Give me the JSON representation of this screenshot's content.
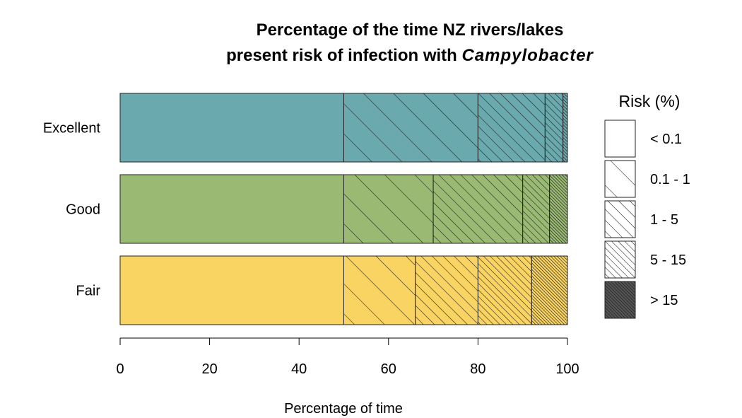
{
  "chart_data": {
    "type": "bar",
    "orientation": "horizontal",
    "stacked": true,
    "title_line1": "Percentage of the time NZ rivers/lakes",
    "title_line2_prefix": "present risk of infection with ",
    "title_line2_italic": "Campylobacter",
    "xlabel": "Percentage of time",
    "ylabel": "",
    "xlim": [
      0,
      100
    ],
    "xticks": [
      0,
      20,
      40,
      60,
      80,
      100
    ],
    "grid": false,
    "categories": [
      "Excellent",
      "Good",
      "Fair"
    ],
    "category_colors": [
      "#6aa9ad",
      "#9aba74",
      "#fad462"
    ],
    "series": [
      {
        "name": "< 0.1",
        "values": [
          50,
          50,
          50
        ]
      },
      {
        "name": "0.1 - 1",
        "values": [
          30,
          20,
          16
        ]
      },
      {
        "name": "1 - 5",
        "values": [
          15,
          20,
          14
        ]
      },
      {
        "name": "5 - 15",
        "values": [
          4,
          6,
          12
        ]
      },
      {
        "name": "> 15",
        "values": [
          1,
          4,
          8
        ]
      }
    ],
    "legend": {
      "title": "Risk (%)",
      "placement": "right",
      "entries": [
        "< 0.1",
        "0.1 - 1",
        "1 - 5",
        "5 - 15",
        "> 15"
      ]
    }
  }
}
